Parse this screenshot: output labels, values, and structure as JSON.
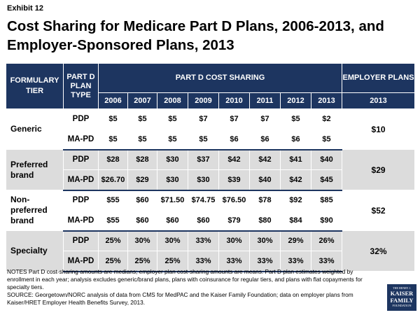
{
  "exhibit": "Exhibit 12",
  "title": "Cost Sharing for Medicare Part D Plans, 2006-2013, and Employer-Sponsored Plans, 2013",
  "header": {
    "formulary_tier": "FORMULARY TIER",
    "plan_type": "PART D PLAN TYPE",
    "part_d_cost_sharing": "PART D COST SHARING",
    "employer_plans": "EMPLOYER PLANS",
    "years": [
      "2006",
      "2007",
      "2008",
      "2009",
      "2010",
      "2011",
      "2012",
      "2013"
    ],
    "employer_year": "2013"
  },
  "tiers": [
    {
      "name": "Generic",
      "employer": "$10",
      "rows": [
        {
          "type": "PDP",
          "values": [
            "$5",
            "$5",
            "$5",
            "$7",
            "$7",
            "$7",
            "$5",
            "$2"
          ]
        },
        {
          "type": "MA-PD",
          "values": [
            "$5",
            "$5",
            "$5",
            "$5",
            "$6",
            "$6",
            "$6",
            "$5"
          ]
        }
      ]
    },
    {
      "name": "Preferred brand",
      "employer": "$29",
      "rows": [
        {
          "type": "PDP",
          "values": [
            "$28",
            "$28",
            "$30",
            "$37",
            "$42",
            "$42",
            "$41",
            "$40"
          ]
        },
        {
          "type": "MA-PD",
          "values": [
            "$26.70",
            "$29",
            "$30",
            "$30",
            "$39",
            "$40",
            "$42",
            "$45"
          ]
        }
      ]
    },
    {
      "name": "Non-preferred brand",
      "employer": "$52",
      "rows": [
        {
          "type": "PDP",
          "values": [
            "$55",
            "$60",
            "$71.50",
            "$74.75",
            "$76.50",
            "$78",
            "$92",
            "$85"
          ]
        },
        {
          "type": "MA-PD",
          "values": [
            "$55",
            "$60",
            "$60",
            "$60",
            "$79",
            "$80",
            "$84",
            "$90"
          ]
        }
      ]
    },
    {
      "name": "Specialty",
      "employer": "32%",
      "rows": [
        {
          "type": "PDP",
          "values": [
            "25%",
            "30%",
            "30%",
            "33%",
            "30%",
            "30%",
            "29%",
            "26%"
          ]
        },
        {
          "type": "MA-PD",
          "values": [
            "25%",
            "25%",
            "25%",
            "33%",
            "33%",
            "33%",
            "33%",
            "33%"
          ]
        }
      ]
    }
  ],
  "notes": "NOTES Part D cost-sharing amounts are medians; employer plan cost-sharing amounts are means.  Part D plan estimates weighted by enrollment in each year; analysis excludes generic/brand plans, plans with coinsurance for regular tiers, and plans with flat copayments for specialty tiers.",
  "source": "SOURCE: Georgetown/NORC analysis of data from CMS for MedPAC and the Kaiser Family Foundation; data on employer plans from Kaiser/HRET Employer Health Benefits Survey, 2013.",
  "logo": {
    "line1": "THE HENRY J.",
    "line2": "KAISER",
    "line3": "FAMILY",
    "line4": "FOUNDATION"
  },
  "colors": {
    "header_bg": "#1d3560",
    "row_gray": "#dcdcdc"
  }
}
